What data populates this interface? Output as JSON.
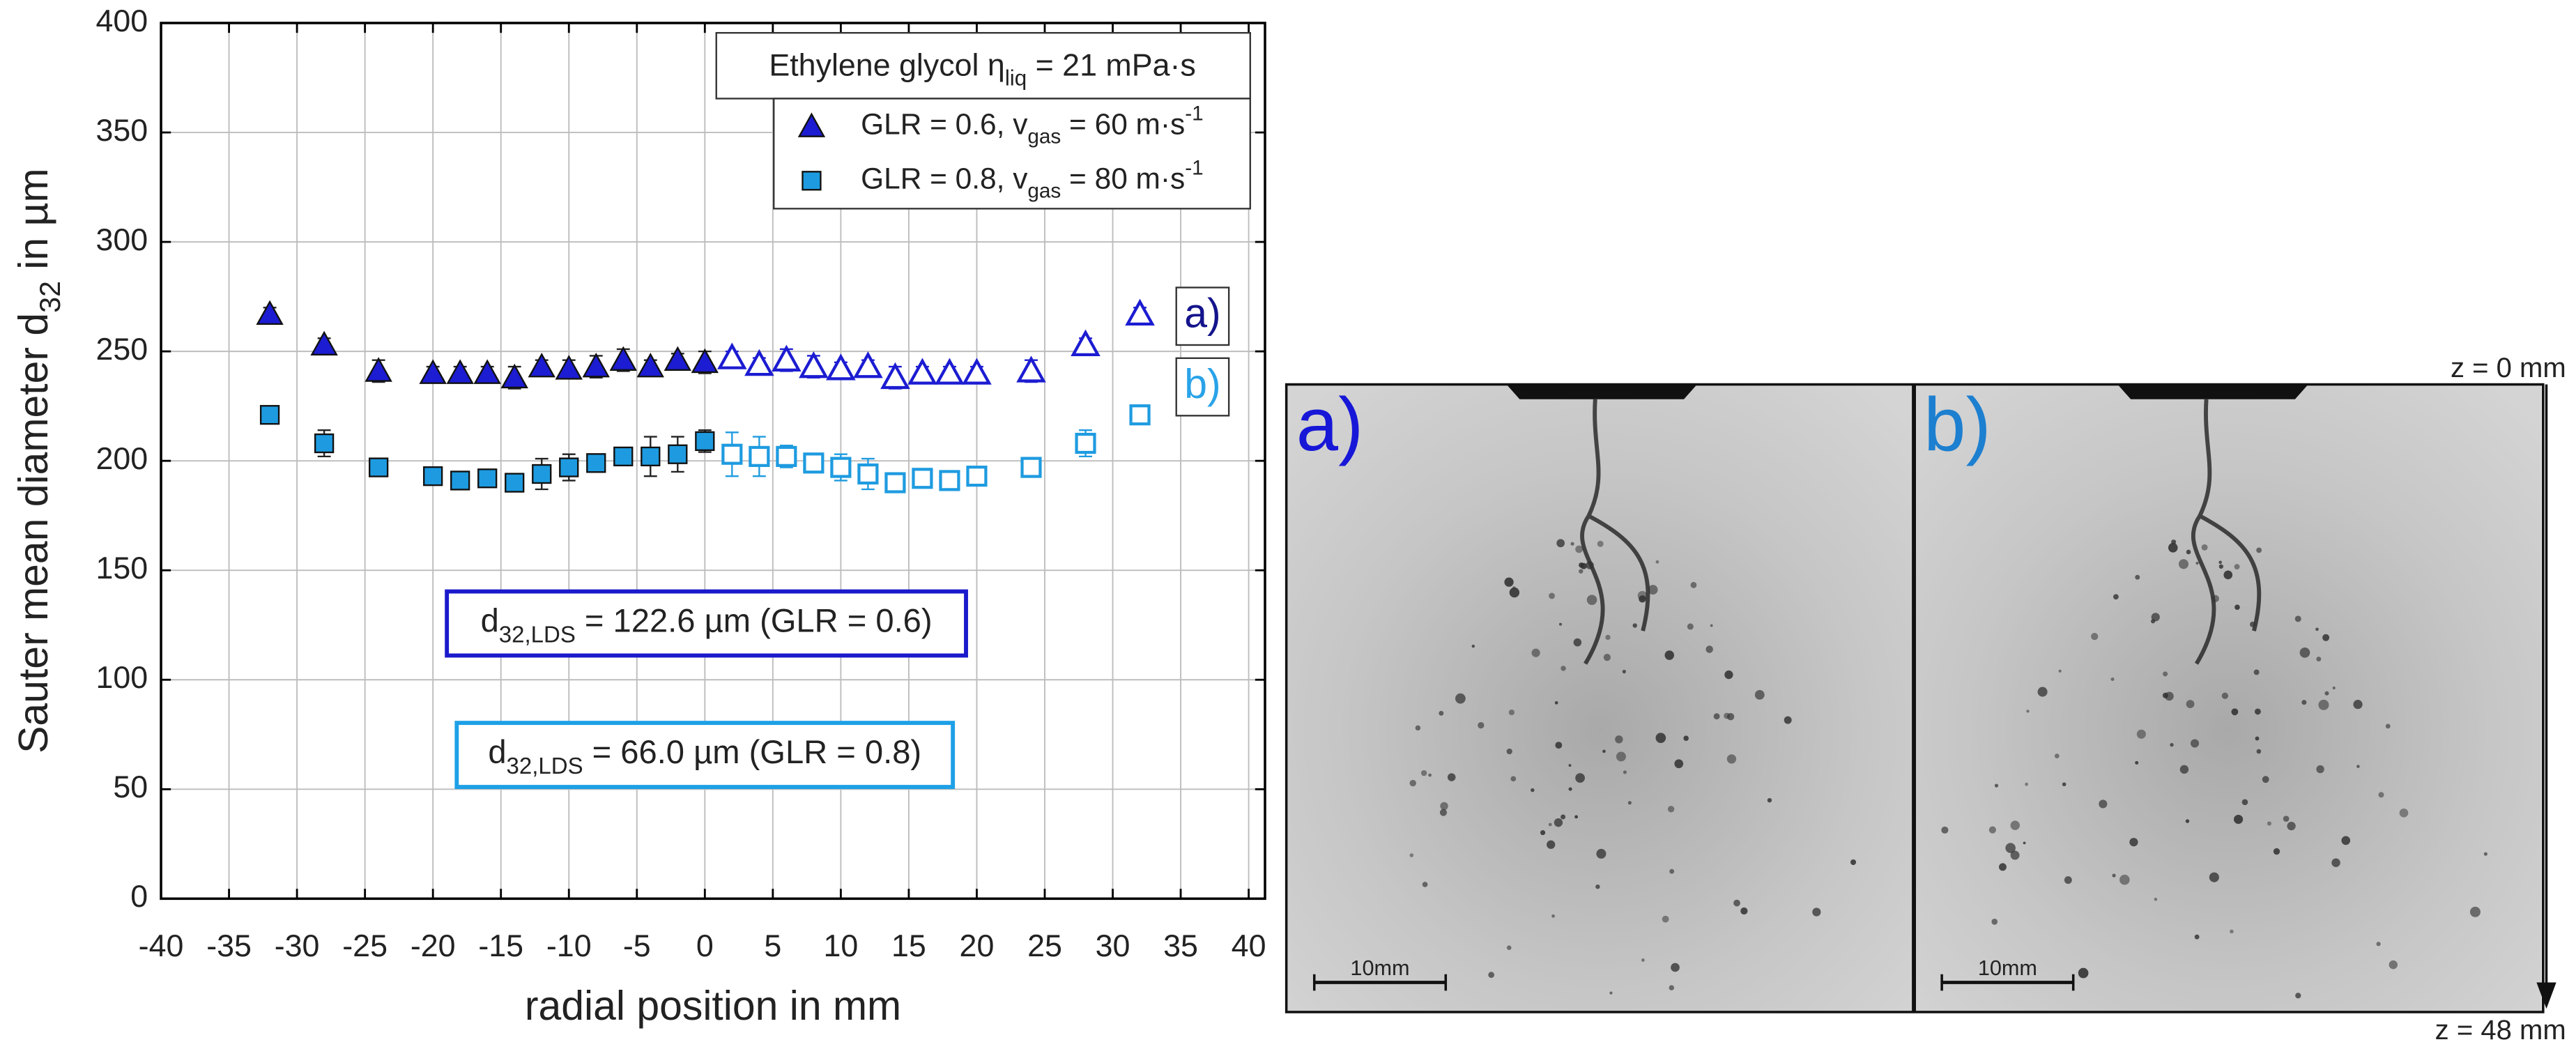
{
  "chart_data": {
    "type": "scatter",
    "xlabel": "radial position in mm",
    "ylabel": {
      "parts": [
        "Sauter mean diameter d",
        "32",
        " in µm"
      ],
      "styles": [
        "normal",
        "sub",
        "normal"
      ]
    },
    "xlim": [
      -40,
      41.2
    ],
    "ylim": [
      0,
      400
    ],
    "xticks": [
      -40,
      -35,
      -30,
      -25,
      -20,
      -15,
      -10,
      -5,
      0,
      5,
      10,
      15,
      20,
      25,
      30,
      35,
      40
    ],
    "yticks": [
      0,
      50,
      100,
      150,
      200,
      250,
      300,
      350,
      400
    ],
    "grid": true,
    "legend": {
      "position": "upper right",
      "title": {
        "parts": [
          "Ethylene glycol η",
          "liq",
          " = 21 mPa·s"
        ],
        "styles": [
          "normal",
          "sub",
          "normal"
        ]
      }
    },
    "series": [
      {
        "name": {
          "parts": [
            "GLR = 0.6, v",
            "gas",
            " = 60 m·s",
            "-1"
          ],
          "styles": [
            "normal",
            "sub",
            "normal",
            "sup"
          ]
        },
        "marker": "triangle",
        "color": "#1c1cd2",
        "x": [
          -32,
          -28,
          -24,
          -20,
          -18,
          -16,
          -14,
          -12,
          -10,
          -8,
          -6,
          -4,
          -2,
          0,
          2,
          4,
          6,
          8,
          10,
          12,
          14,
          16,
          18,
          20,
          24,
          28,
          32
        ],
        "values": [
          267,
          253,
          241,
          240,
          240,
          240,
          238,
          243,
          242,
          243,
          246,
          243,
          246,
          245,
          247,
          244,
          246,
          243,
          242,
          243,
          238,
          240,
          240,
          240,
          241,
          253,
          267
        ],
        "errors": [
          3,
          3,
          5,
          3,
          3,
          3,
          5,
          3,
          4,
          5,
          5,
          3,
          3,
          5,
          3,
          3,
          5,
          5,
          3,
          3,
          5,
          3,
          3,
          3,
          5,
          3,
          3
        ],
        "filled": [
          true,
          true,
          true,
          true,
          true,
          true,
          true,
          true,
          true,
          true,
          true,
          true,
          true,
          true,
          false,
          false,
          false,
          false,
          false,
          false,
          false,
          false,
          false,
          false,
          false,
          false,
          false
        ]
      },
      {
        "name": {
          "parts": [
            "GLR = 0.8, v",
            "gas",
            " = 80 m·s",
            "-1"
          ],
          "styles": [
            "normal",
            "sub",
            "normal",
            "sup"
          ]
        },
        "marker": "square",
        "color": "#1e9be0",
        "x": [
          -32,
          -28,
          -24,
          -20,
          -18,
          -16,
          -14,
          -12,
          -10,
          -8,
          -6,
          -4,
          -2,
          0,
          2,
          4,
          6,
          8,
          10,
          12,
          14,
          16,
          18,
          20,
          24,
          28,
          32
        ],
        "values": [
          221,
          208,
          197,
          193,
          191,
          192,
          190,
          194,
          197,
          199,
          202,
          202,
          203,
          209,
          203,
          202,
          202,
          199,
          197,
          194,
          190,
          192,
          191,
          193,
          197,
          208,
          221
        ],
        "errors": [
          3,
          6,
          3,
          3,
          3,
          3,
          3,
          7,
          6,
          3,
          3,
          9,
          8,
          5,
          10,
          9,
          5,
          3,
          6,
          7,
          3,
          3,
          3,
          3,
          3,
          6,
          3
        ],
        "filled": [
          true,
          true,
          true,
          true,
          true,
          true,
          true,
          true,
          true,
          true,
          true,
          true,
          true,
          true,
          false,
          false,
          false,
          false,
          false,
          false,
          false,
          false,
          false,
          false,
          false,
          false,
          false
        ]
      }
    ],
    "annotations": [
      {
        "text": {
          "parts": [
            "a)"
          ],
          "styles": [
            "normal"
          ]
        },
        "color": "#14148c"
      },
      {
        "text": {
          "parts": [
            "b)"
          ],
          "styles": [
            "normal"
          ]
        },
        "color": "#29a3e8"
      },
      {
        "text": {
          "parts": [
            "d",
            "32,LDS",
            " = 122.6 µm (GLR = 0.6)"
          ],
          "styles": [
            "normal",
            "sub",
            "normal"
          ]
        },
        "color": "#1a1acc"
      },
      {
        "text": {
          "parts": [
            "d",
            "32,LDS",
            " = 66.0 µm (GLR = 0.8)"
          ],
          "styles": [
            "normal",
            "sub",
            "normal"
          ]
        },
        "color": "#1ea0e6"
      }
    ]
  },
  "images": {
    "panels": [
      {
        "label": "a)",
        "label_color": "#1717d8",
        "scale_bar": "10mm"
      },
      {
        "label": "b)",
        "label_color": "#1c7fd0",
        "scale_bar": "10mm"
      }
    ],
    "z_top": "z = 0 mm",
    "z_bottom": "z = 48 mm"
  }
}
